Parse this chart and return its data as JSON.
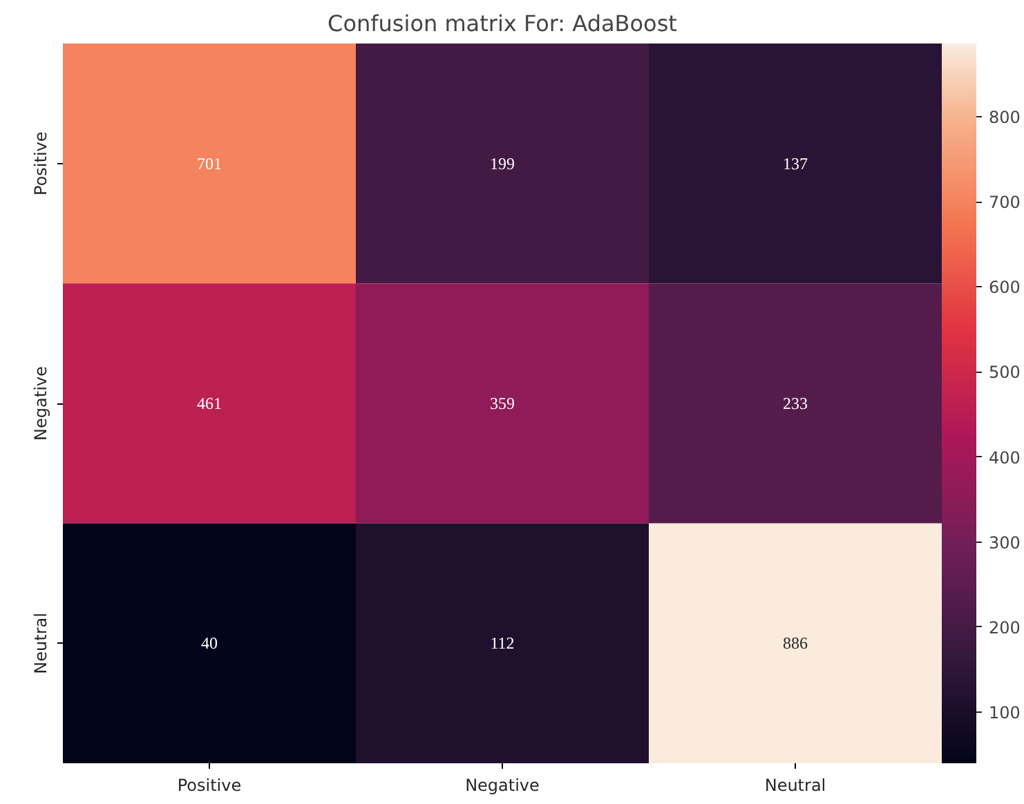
{
  "chart_data": {
    "type": "heatmap",
    "title": "Confusion matrix For: AdaBoost",
    "categories": [
      "Positive",
      "Negative",
      "Neutral"
    ],
    "y_categories": [
      "Positive",
      "Negative",
      "Neutral"
    ],
    "cells": [
      [
        701,
        199,
        137
      ],
      [
        461,
        359,
        233
      ],
      [
        40,
        112,
        886
      ]
    ],
    "data_labels": true,
    "clim": [
      40,
      886
    ],
    "cticks": [
      100,
      200,
      300,
      400,
      500,
      600,
      700,
      800
    ]
  }
}
